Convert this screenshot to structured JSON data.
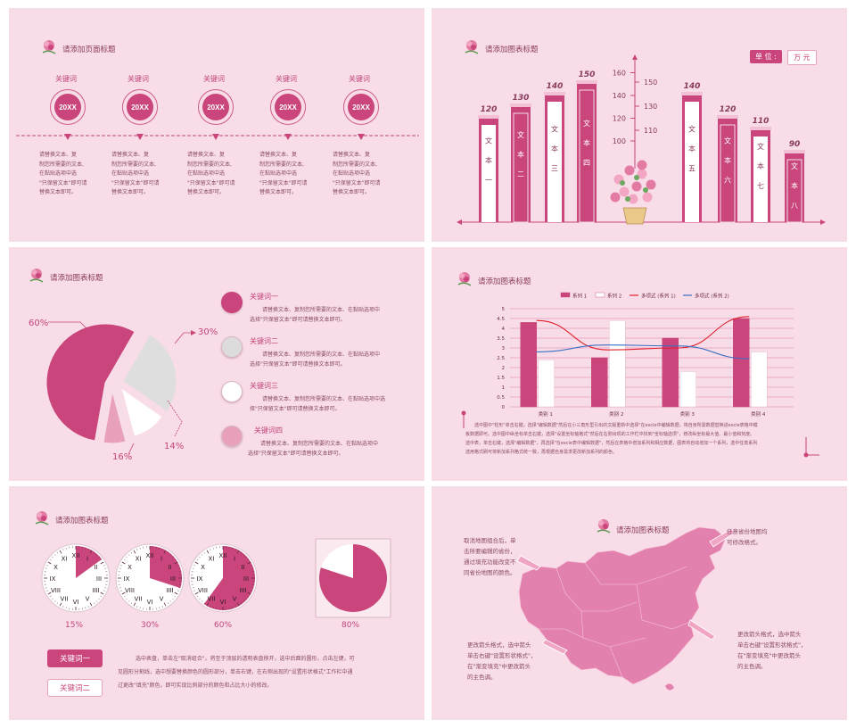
{
  "colors": {
    "bg": "#f8dde8",
    "accent": "#c9457b",
    "dark": "#8a3a5d",
    "light": "#ffffff"
  },
  "s1": {
    "title": "请添加页面标题",
    "items": [
      {
        "keyword": "关键词",
        "circle": "20XX",
        "text": [
          "请替换文本、复",
          "制您所需要的文本,",
          "在黏贴选项中选",
          "\"只保留文本\"即可请",
          "替换文本即可。"
        ]
      },
      {
        "keyword": "关键词",
        "circle": "20XX",
        "text": [
          "请替换文本、复",
          "制您所需要的文本,",
          "在黏贴选项中选",
          "\"只保留文本\"即可请",
          "替换文本即可。"
        ]
      },
      {
        "keyword": "关键词",
        "circle": "20XX",
        "text": [
          "请替换文本、复",
          "制您所需要的文本,",
          "在黏贴选项中选",
          "\"只保留文本\"即可请",
          "替换文本即可。"
        ]
      },
      {
        "keyword": "关键词",
        "circle": "20XX",
        "text": [
          "请替换文本、复",
          "制您所需要的文本,",
          "在黏贴选项中选",
          "\"只保留文本\"即可请",
          "替换文本即可。"
        ]
      },
      {
        "keyword": "关键词",
        "circle": "20XX",
        "text": [
          "请替换文本、复",
          "制您所需要的文本,",
          "在黏贴选项中选",
          "\"只保留文本\"即可请",
          "替换文本即可。"
        ]
      }
    ]
  },
  "s2": {
    "title": "请添加图表标题",
    "unit_label": "单 位 :",
    "unit_value": "万 元",
    "chart_data": {
      "type": "bar",
      "categories": [
        "文本一",
        "文本二",
        "文本三",
        "文本四",
        "文本五",
        "文本六",
        "文本七",
        "文本八"
      ],
      "values": [
        120,
        130,
        140,
        150,
        140,
        120,
        110,
        90
      ],
      "left_axis_ticks": [
        100,
        120,
        140,
        160
      ],
      "right_axis_ticks": [
        110,
        130,
        150
      ]
    }
  },
  "s3": {
    "title": "请添加图表标题",
    "chart_data": {
      "type": "pie",
      "values": [
        60,
        30,
        14,
        16
      ],
      "labels": [
        "60%",
        "30%",
        "14%",
        "16%"
      ]
    },
    "legend": [
      {
        "title": "关键词一",
        "text": [
          "请替换文本、复制您所需要的文本、在黏贴选项中",
          "选择\"只保留文本\"即可请替换文本即可。"
        ],
        "color": "#c9457b"
      },
      {
        "title": "关键词二",
        "text": [
          "请替换文本、复制您所需要的文本、在黏贴选项中",
          "选择\"只保留文本\"即可请替换文本即可。"
        ],
        "color": "#dcdcdc"
      },
      {
        "title": "关键词三",
        "text": [
          "请替换文本、复制您所需要的文本、在黏贴选项中选",
          "择\"只保留文本\"即可请替换文本即可。"
        ],
        "color": "#ffffff"
      },
      {
        "title": "关键词四",
        "text": [
          "请替换文本、复制您所需要的文本、在黏贴选项中",
          "选择\"只保留文本\"即可请替换文本即可。"
        ],
        "color": "#e8a0bd"
      }
    ]
  },
  "s4": {
    "title": "请添加图表标题",
    "chart_data": {
      "type": "bar",
      "categories": [
        "类别 1",
        "类别 2",
        "类别 3",
        "类别 4"
      ],
      "ylim": [
        0,
        5
      ],
      "y_ticks": [
        "0",
        "0.5",
        "1",
        "1.5",
        "2",
        "2.5",
        "3",
        "3.5",
        "4",
        "4.5",
        "5"
      ],
      "series": [
        {
          "name": "系列 1",
          "values": [
            4.3,
            2.5,
            3.5,
            4.5
          ]
        },
        {
          "name": "系列 2",
          "values": [
            2.4,
            4.4,
            1.8,
            2.8
          ]
        }
      ],
      "trendlines": [
        {
          "name": "多项式 (系列 1)",
          "values": [
            4.4,
            2.9,
            3.0,
            4.6
          ]
        },
        {
          "name": "多项式 (系列 2)",
          "values": [
            2.8,
            3.15,
            3.1,
            2.45
          ]
        }
      ]
    },
    "description": [
      "选中图中\"柱形\"单击右键，选择\"编辑数据\"然后在小三角形里引出的文版重新中选择\"在excle中编辑数据，将自身所需数据替换进excle表格中模",
      "板数据即可。选中图中纵坐标单击右键，选择\"设置坐标轴格式\"然后在右侧出现的工作栏中找到\"坐标轴选项\"，修改纵坐标最大值、最小值和刻度。",
      "选中表，单击右键，选择\"编辑数据\"，再选择\"在excle表中编辑数据\"，然后在表格中增加系列和相应数据，图表将自动增加一个系列，选中任意系列",
      "选用格式刷可将新加系列格式统一致，再根据自身需求更改新加系列的颜色。"
    ]
  },
  "s5": {
    "title": "请添加图表标题",
    "clocks": [
      {
        "value": 15,
        "label": "15%"
      },
      {
        "value": 30,
        "label": "30%"
      },
      {
        "value": 60,
        "label": "60%"
      },
      {
        "value": 80,
        "label": "80%"
      }
    ],
    "button1": "关键词一",
    "button2": "关键词二",
    "text": [
      "选中表盘，单击左\"取消组合\"，将至于顶层的透明表盘移开，选中后面的圆形，点击左键，可",
      "见圆形分割线，选中想要替换颜色的圆形部分，单击右键，在右侧出现的\"设置形状格式\"工作栏中通",
      "过更改\"填充\"颜色，即可实现比例部分的颜色和占比大小的修改。"
    ]
  },
  "s6": {
    "title": "请添加图表标题",
    "notes": [
      [
        "取消地图组合后，单",
        "击所要编辑的省份，",
        "通过填充功能改变不",
        "同省份地图的颜色。"
      ],
      [
        "任意省份地图均",
        "可修改格式。"
      ],
      [
        "更改箭头格式，选中箭头",
        "单击右键\"设置形状格式\"，",
        "在\"渐变填充\"中更改箭头",
        "的主色调。"
      ],
      [
        "更改箭头格式，选中箭头",
        "单击右键\"设置形状格式\"，",
        "在\"渐变填充\"中更改箭头",
        "的主色调。"
      ]
    ]
  }
}
